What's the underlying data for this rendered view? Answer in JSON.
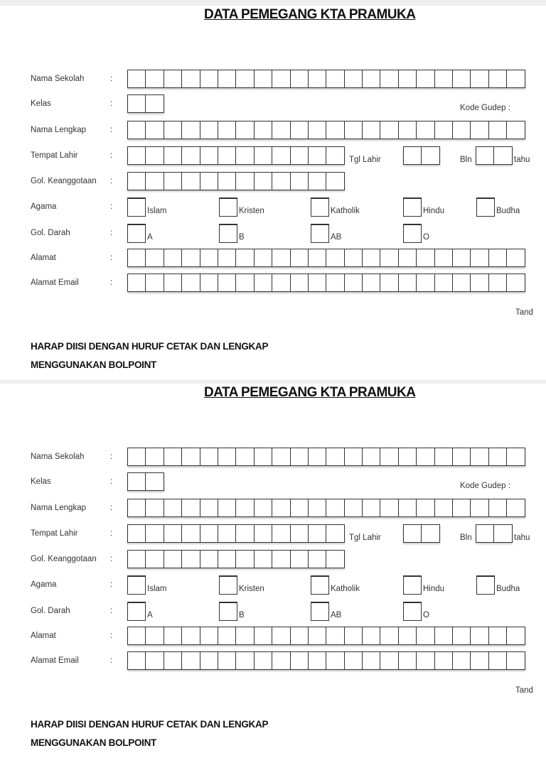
{
  "pages": [
    {
      "title": "DATA PEMEGANG KTA PRAMUKA",
      "fields": {
        "nama_sekolah": "Nama Sekolah",
        "kelas": "Kelas",
        "kode_gudep": "Kode Gudep  :",
        "nama_lengkap": "Nama Lengkap",
        "tempat_lahir": "Tempat Lahir",
        "tgl_lahir": "Tgl Lahir",
        "bln": "Bln",
        "tahun": "tahu",
        "gol_keanggotaan": "Gol. Keanggotaan",
        "agama": "Agama",
        "gol_darah": "Gol. Darah",
        "alamat": "Alamat",
        "alamat_email": "Alamat Email"
      },
      "colon": ":",
      "agama_options": [
        "Islam",
        "Kristen",
        "Katholik",
        "Hindu",
        "Budha"
      ],
      "darah_options": [
        "A",
        "B",
        "AB",
        "O"
      ],
      "signature_label": "Tand",
      "note_line1": "HARAP DIISI DENGAN HURUF CETAK DAN LENGKAP",
      "note_line2": "MENGGUNAKAN BOLPOINT"
    },
    {
      "title": "DATA PEMEGANG KTA PRAMUKA",
      "fields": {
        "nama_sekolah": "Nama Sekolah",
        "kelas": "Kelas",
        "kode_gudep": "Kode Gudep  :",
        "nama_lengkap": "Nama Lengkap",
        "tempat_lahir": "Tempat Lahir",
        "tgl_lahir": "Tgl Lahir",
        "bln": "Bln",
        "tahun": "tahu",
        "gol_keanggotaan": "Gol. Keanggotaan",
        "agama": "Agama",
        "gol_darah": "Gol. Darah",
        "alamat": "Alamat",
        "alamat_email": "Alamat Email"
      },
      "colon": ":",
      "agama_options": [
        "Islam",
        "Kristen",
        "Katholik",
        "Hindu",
        "Budha"
      ],
      "darah_options": [
        "A",
        "B",
        "AB",
        "O"
      ],
      "signature_label": "Tand",
      "note_line1": "HARAP DIISI DENGAN HURUF CETAK DAN LENGKAP",
      "note_line2": "MENGGUNAKAN BOLPOINT"
    }
  ]
}
